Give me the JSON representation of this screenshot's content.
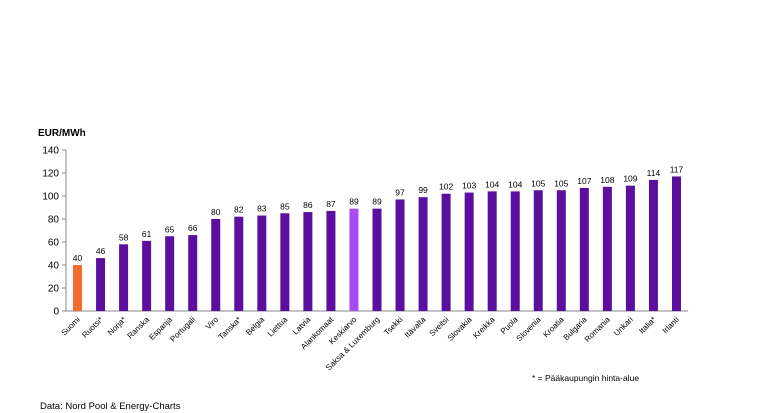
{
  "chart_data": {
    "type": "bar",
    "ylabel": "EUR/MWh",
    "ylim": [
      0,
      140
    ],
    "yticks": [
      0,
      20,
      40,
      60,
      80,
      100,
      120,
      140
    ],
    "grid": false,
    "categories": [
      "Suomi",
      "Ruotsi*",
      "Norja*",
      "Ranska",
      "Espanja",
      "Portugali",
      "Viro",
      "Tanska*",
      "Belgia",
      "Liettua",
      "Latvia",
      "Alankomaat",
      "Keskiarvo",
      "Saksa & Luxemburg",
      "Tsekki",
      "Itävalta",
      "Sveitsi",
      "Slovakia",
      "Kreikka",
      "Puola",
      "Slovenia",
      "Kroatia",
      "Bulgaria",
      "Romania",
      "Unkari",
      "Italia*",
      "Irlanti"
    ],
    "values": [
      40,
      46,
      58,
      61,
      65,
      66,
      80,
      82,
      83,
      85,
      86,
      87,
      89,
      89,
      97,
      99,
      102,
      103,
      104,
      104,
      105,
      105,
      107,
      108,
      109,
      114,
      117
    ],
    "colors": {
      "default": "#5b0f9e",
      "highlight_suomi": "#f26b2f",
      "highlight_average": "#a84bf0"
    },
    "footnote": "* = Pääkaupungin hinta-alue",
    "source": "Data: Nord Pool & Energy-Charts"
  }
}
